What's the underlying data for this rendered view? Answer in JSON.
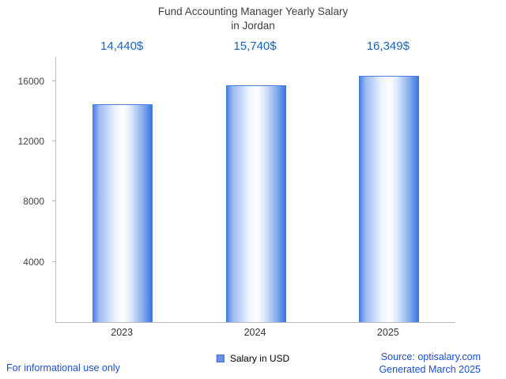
{
  "title": {
    "line1": "Fund Accounting Manager Yearly Salary",
    "line2": "in Jordan"
  },
  "chart_data": {
    "type": "bar",
    "title": "Fund Accounting Manager Yearly Salary in Jordan",
    "categories": [
      "2023",
      "2024",
      "2025"
    ],
    "values": [
      14440,
      15740,
      16349
    ],
    "value_labels": [
      "14,440$",
      "15,740$",
      "16,349$"
    ],
    "xlabel": "",
    "ylabel": "",
    "ylim": [
      0,
      17600
    ],
    "yticks": [
      4000,
      8000,
      12000,
      16000
    ],
    "grid": false,
    "legend_position": "bottom",
    "legend": [
      {
        "label": "Salary in USD",
        "color": "#6a93e8"
      }
    ]
  },
  "footer": {
    "left": "For informational use only",
    "source": "Source: optisalary.com",
    "generated": "Generated March 2025"
  },
  "colors": {
    "title_text": "#3f3f3f",
    "value_text": "#1565c0",
    "footer_text": "#1b50d0",
    "axis": "#bdbdbd",
    "tick_text": "#424242",
    "bar_edge": "#4a7de0",
    "bar_left": "#4d82e4",
    "bar_mid": "#ffffff",
    "bar_right": "#3c77e2"
  }
}
